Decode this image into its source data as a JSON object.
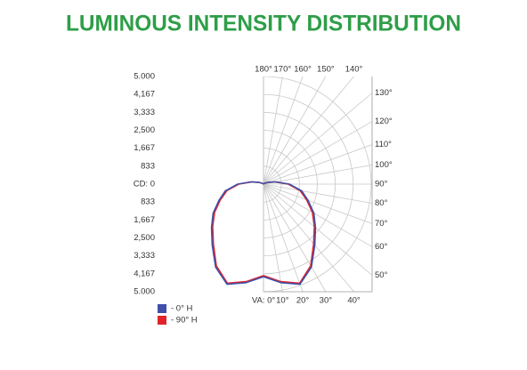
{
  "chart_data": {
    "type": "polar",
    "title": "LUMINOUS INTENSITY DISTRIBUTION",
    "x": [
      0,
      10,
      20,
      30,
      40,
      50,
      60,
      70,
      80,
      90,
      100,
      110,
      120,
      130,
      140,
      150,
      160,
      170,
      180
    ],
    "series": [
      {
        "name": "- 0° H",
        "color": "#3f4fa8",
        "values": [
          4300,
          4650,
          4950,
          4450,
          3700,
          3150,
          2700,
          2200,
          1800,
          1200,
          600,
          250,
          100,
          40,
          10,
          0,
          0,
          0,
          0
        ]
      },
      {
        "name": "- 90° H",
        "color": "#e0242b",
        "values": [
          4250,
          4600,
          4900,
          4380,
          3620,
          3080,
          2620,
          2130,
          1720,
          1150,
          560,
          230,
          90,
          30,
          5,
          0,
          0,
          0,
          0
        ]
      }
    ],
    "rlim": [
      0,
      5000
    ],
    "rticks": [
      {
        "value": 0,
        "label": "CD: 0"
      },
      833,
      {
        "value": 1667,
        "label": "1,667"
      },
      {
        "value": 2500,
        "label": "2,500"
      },
      {
        "value": 3333,
        "label": "3,333"
      },
      {
        "value": 4167,
        "label": "4,167"
      },
      {
        "value": 5000,
        "label": "5.000"
      }
    ],
    "angle_ticks": [
      {
        "value": 0,
        "label": "VA: 0°"
      },
      {
        "value": 10,
        "label": "10°"
      },
      {
        "value": 20,
        "label": "20°"
      },
      {
        "value": 30,
        "label": "30°"
      },
      {
        "value": 40,
        "label": "40°"
      },
      {
        "value": 50,
        "label": "50°"
      },
      {
        "value": 60,
        "label": "60°"
      },
      {
        "value": 70,
        "label": "70°"
      },
      {
        "value": 80,
        "label": "80°"
      },
      {
        "value": 90,
        "label": "90°"
      },
      {
        "value": 100,
        "label": "100°"
      },
      {
        "value": 110,
        "label": "110°"
      },
      {
        "value": 120,
        "label": "120°"
      },
      {
        "value": 130,
        "label": "130°"
      },
      {
        "value": 140,
        "label": "140°"
      },
      {
        "value": 150,
        "label": "150°"
      },
      {
        "value": 160,
        "label": "160°"
      },
      {
        "value": 170,
        "label": "170°"
      },
      {
        "value": 180,
        "label": "180°"
      }
    ],
    "grid": true
  }
}
